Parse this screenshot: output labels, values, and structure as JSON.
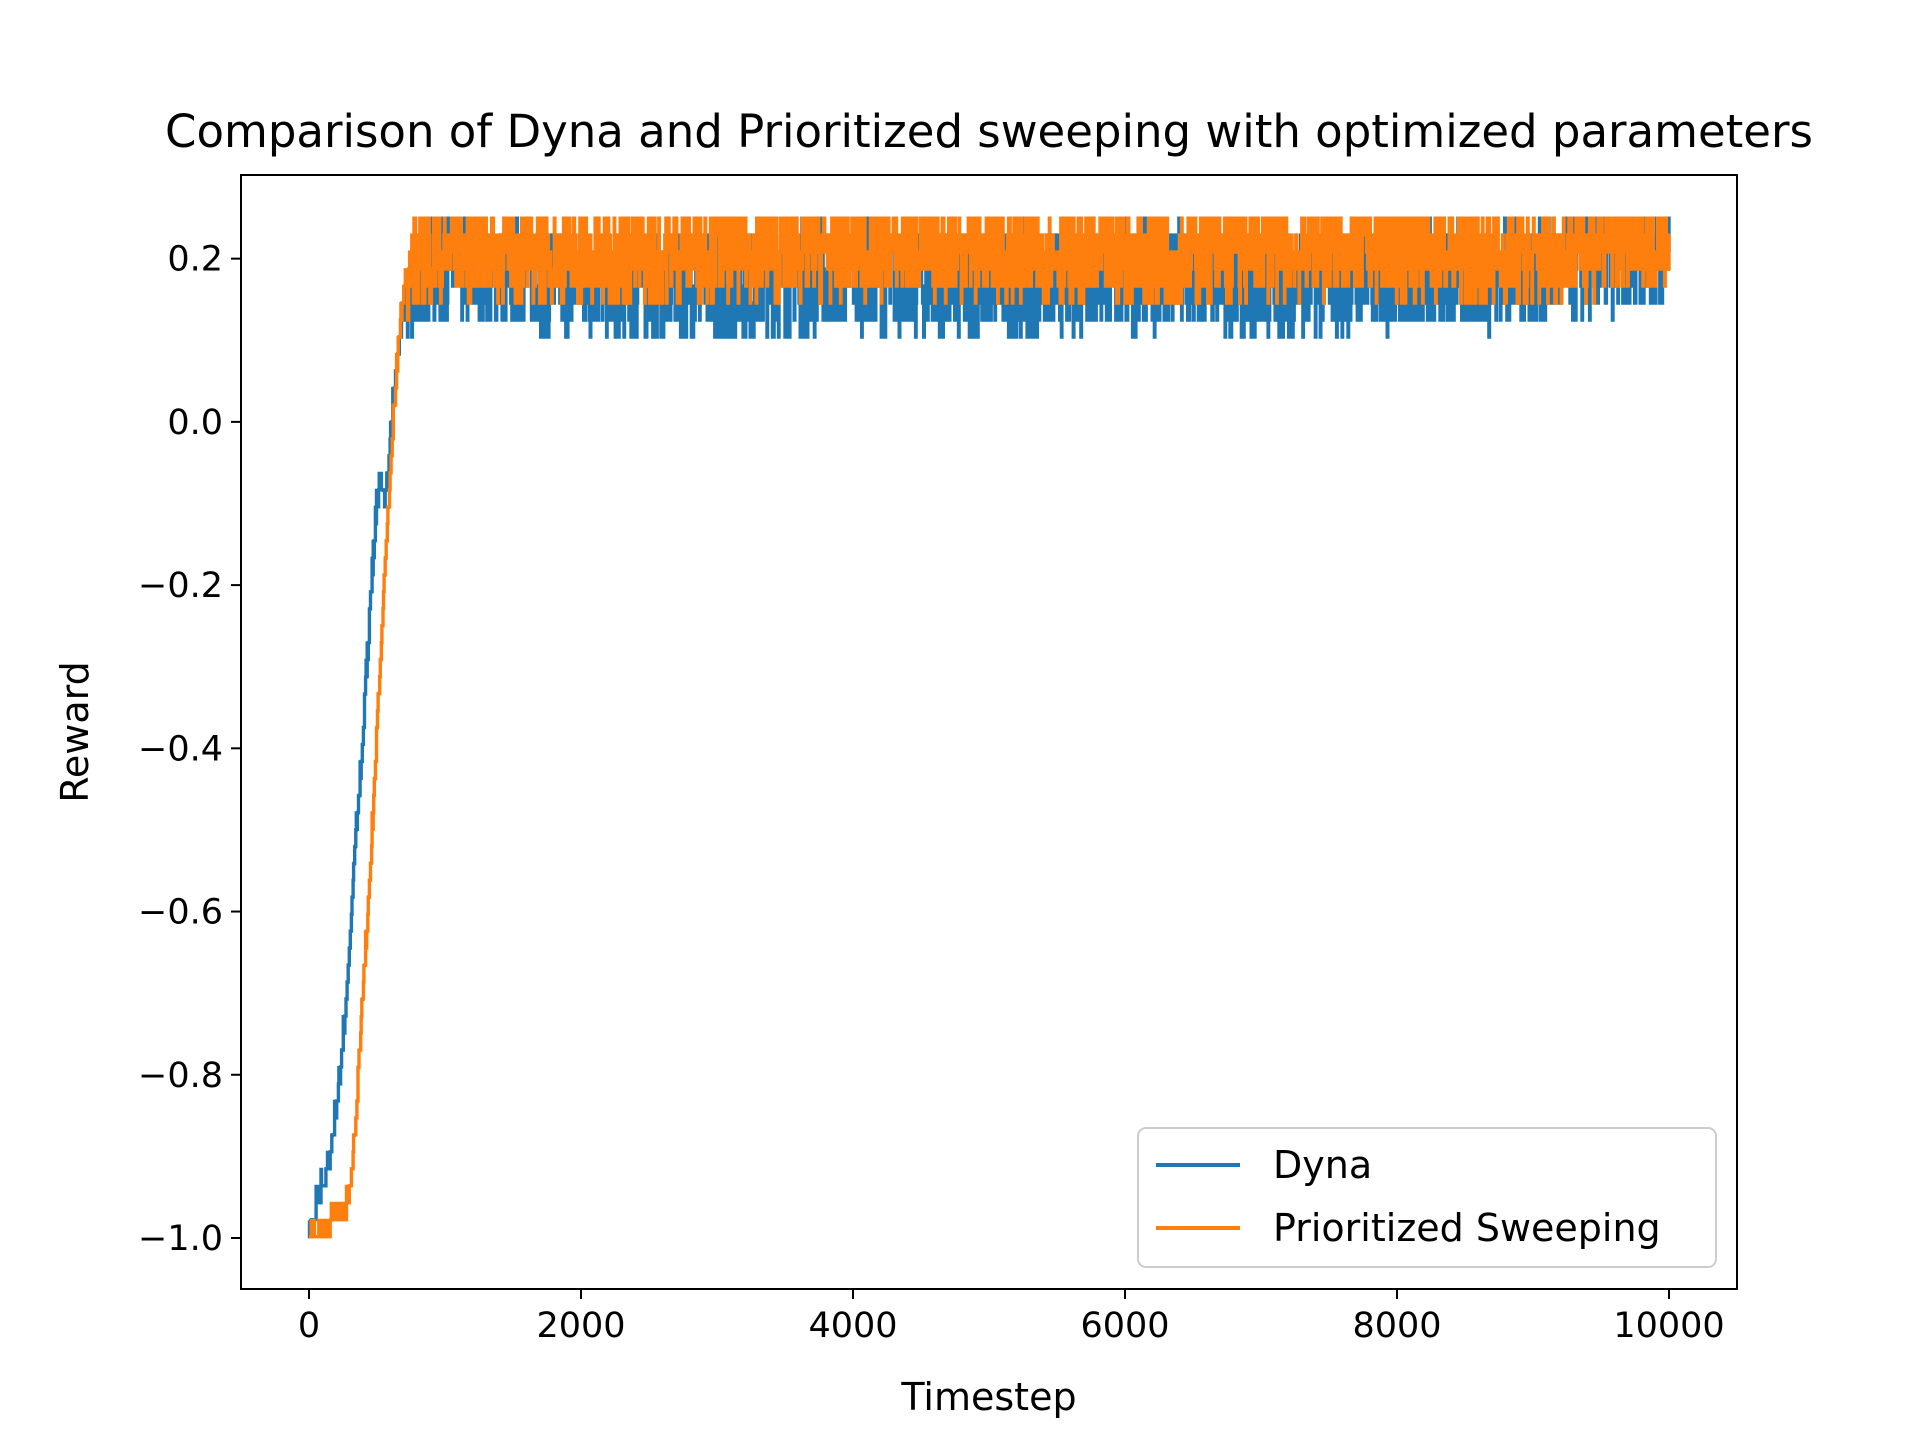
{
  "chart_data": {
    "type": "line",
    "title": "Comparison of Dyna and Prioritized sweeping with optimized parameters",
    "xlabel": "Timestep",
    "ylabel": "Reward",
    "xlim": [
      -500,
      10500
    ],
    "ylim": [
      -1.0625,
      0.3025
    ],
    "xticks": [
      0,
      2000,
      4000,
      6000,
      8000,
      10000
    ],
    "xtick_labels": [
      "0",
      "2000",
      "4000",
      "6000",
      "8000",
      "10000"
    ],
    "yticks": [
      -1.0,
      -0.8,
      -0.6,
      -0.4,
      -0.2,
      0.0,
      0.2
    ],
    "ytick_labels": [
      "−1.0",
      "−0.8",
      "−0.6",
      "−0.4",
      "−0.2",
      "0.0",
      "0.2"
    ],
    "grid": false,
    "legend": "lower-right",
    "series": [
      {
        "name": "Dyna",
        "color": "#1f77b4",
        "x": [
          0,
          60,
          100,
          150,
          190,
          230,
          270,
          300,
          330,
          370,
          400,
          430,
          460,
          490,
          520,
          560,
          600,
          640,
          680,
          720,
          760,
          800,
          1000,
          1500,
          2000,
          3000,
          4000,
          5000,
          6000,
          7000,
          8000,
          9000,
          10000
        ],
        "values": [
          -1.0,
          -0.96,
          -0.94,
          -0.91,
          -0.86,
          -0.8,
          -0.72,
          -0.64,
          -0.55,
          -0.46,
          -0.38,
          -0.29,
          -0.2,
          -0.12,
          -0.08,
          -0.1,
          -0.02,
          0.06,
          0.12,
          0.15,
          0.17,
          0.18,
          0.19,
          0.18,
          0.17,
          0.17,
          0.18,
          0.17,
          0.18,
          0.17,
          0.18,
          0.18,
          0.21
        ],
        "band": {
          "upper": 0.25,
          "lower": 0.1
        }
      },
      {
        "name": "Prioritized Sweeping",
        "color": "#ff7f0e",
        "x": [
          0,
          100,
          200,
          260,
          300,
          340,
          380,
          420,
          460,
          500,
          540,
          580,
          620,
          660,
          700,
          750,
          800,
          1000,
          1500,
          2000,
          3000,
          4000,
          5000,
          6000,
          7000,
          8000,
          9000,
          10000
        ],
        "values": [
          -1.0,
          -1.0,
          -0.98,
          -0.98,
          -0.94,
          -0.87,
          -0.75,
          -0.64,
          -0.52,
          -0.38,
          -0.24,
          -0.12,
          0.0,
          0.1,
          0.16,
          0.19,
          0.2,
          0.21,
          0.21,
          0.2,
          0.21,
          0.21,
          0.21,
          0.2,
          0.21,
          0.21,
          0.2,
          0.23
        ],
        "band": {
          "upper": 0.25,
          "lower": 0.12
        }
      }
    ]
  }
}
